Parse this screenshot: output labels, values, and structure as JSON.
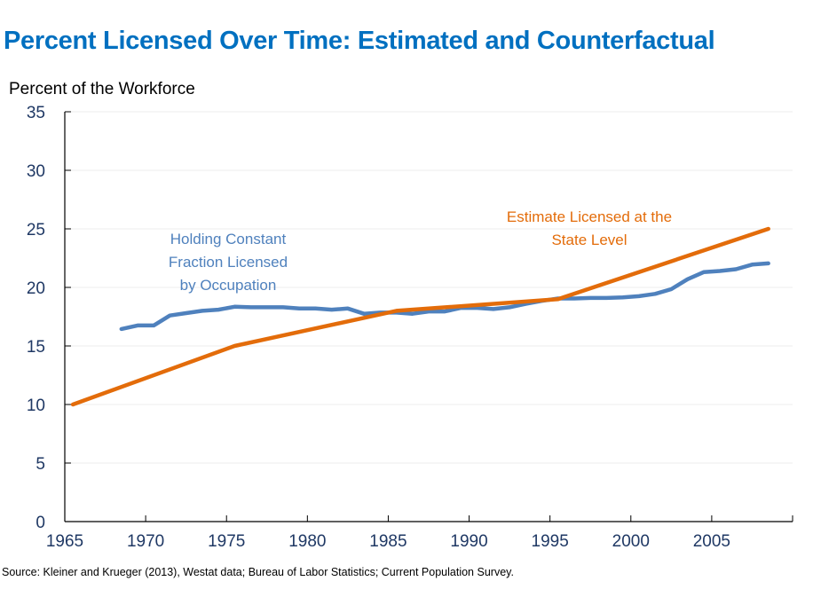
{
  "chart_data": {
    "type": "line",
    "title": "Percent Licensed Over Time: Estimated and Counterfactual",
    "ylabel": "Percent of the Workforce",
    "xlabel": "",
    "xlim": [
      1965,
      2010
    ],
    "ylim": [
      0,
      35
    ],
    "x_ticks": [
      1965,
      1970,
      1975,
      1980,
      1985,
      1990,
      1995,
      2000,
      2005
    ],
    "x_tick_labels": [
      "1965",
      "1970",
      "1975",
      "1980",
      "1985",
      "1990",
      "1995",
      "2000",
      "2005"
    ],
    "y_ticks": [
      0,
      5,
      10,
      15,
      20,
      25,
      30,
      35
    ],
    "y_tick_labels": [
      "0",
      "5",
      "10",
      "15",
      "20",
      "25",
      "30",
      "35"
    ],
    "grid": "horizontal",
    "series": [
      {
        "name": "Holding Constant Fraction Licensed by Occupation",
        "color": "#4F81BD",
        "label_lines": [
          "Holding Constant",
          "Fraction Licensed",
          "by Occupation"
        ],
        "x": [
          1968.5,
          1969.5,
          1970.5,
          1971.5,
          1972.5,
          1973.5,
          1974.5,
          1975.5,
          1976.5,
          1977.5,
          1978.5,
          1979.5,
          1980.5,
          1981.5,
          1982.5,
          1983.5,
          1984.5,
          1985.5,
          1986.5,
          1987.5,
          1988.5,
          1989.5,
          1990.5,
          1991.5,
          1992.5,
          1993.5,
          1994.5,
          1995.5,
          1996.5,
          1997.5,
          1998.5,
          1999.5,
          2000.5,
          2001.5,
          2002.5,
          2003.5,
          2004.5,
          2005.5,
          2006.5,
          2007.5,
          2008.5
        ],
        "values": [
          16.45,
          16.75,
          16.75,
          17.6,
          17.8,
          18.0,
          18.1,
          18.35,
          18.3,
          18.3,
          18.3,
          18.2,
          18.2,
          18.1,
          18.2,
          17.75,
          17.85,
          17.85,
          17.75,
          17.95,
          17.95,
          18.25,
          18.25,
          18.15,
          18.3,
          18.6,
          18.85,
          19.05,
          19.05,
          19.1,
          19.1,
          19.15,
          19.25,
          19.45,
          19.85,
          20.7,
          21.3,
          21.4,
          21.55,
          21.95,
          22.05
        ]
      },
      {
        "name": "Estimate Licensed at the State Level",
        "color": "#E36C0A",
        "label_lines": [
          "Estimate Licensed at the",
          "State Level"
        ],
        "x": [
          1965.5,
          1975.5,
          1985.5,
          1995.5,
          2008.5
        ],
        "values": [
          10.0,
          15.0,
          18.0,
          19.0,
          25.0
        ]
      }
    ],
    "legend": "inline-annotations"
  },
  "source": "Source: Kleiner and Krueger (2013), Westat data; Bureau of Labor Statistics; Current Population Survey."
}
